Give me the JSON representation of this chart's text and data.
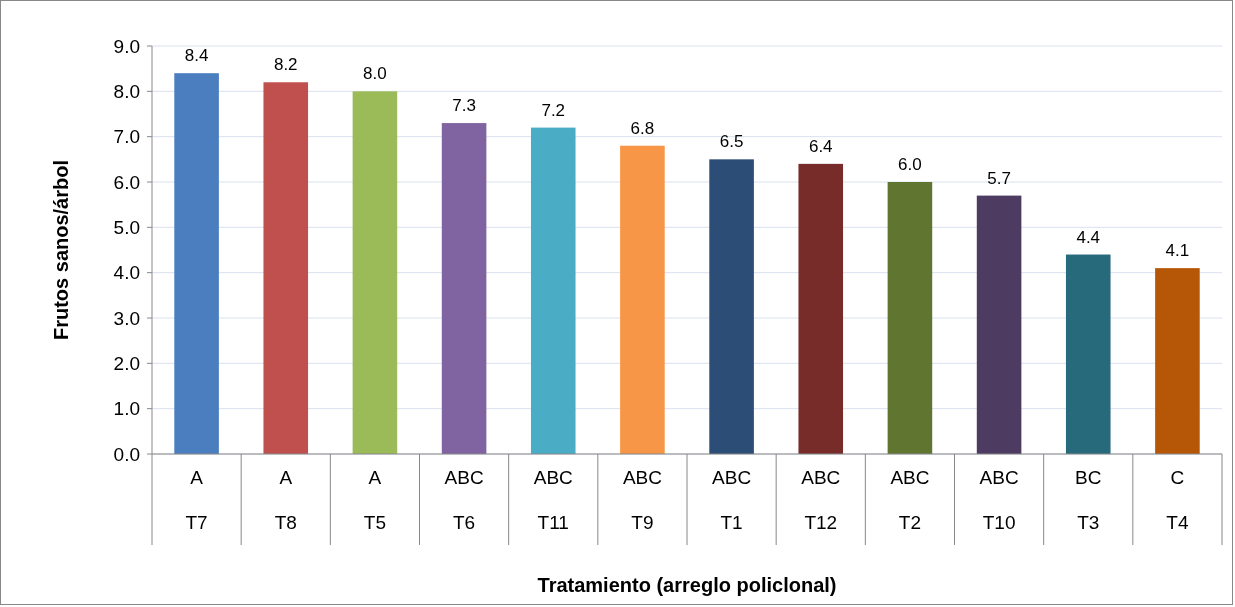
{
  "chart_data": {
    "type": "bar",
    "xlabel": "Tratamiento (arreglo policlonal)",
    "ylabel": "Frutos sanos/árbol",
    "categories": [
      "T7",
      "T8",
      "T5",
      "T6",
      "T11",
      "T9",
      "T1",
      "T12",
      "T2",
      "T10",
      "T3",
      "T4"
    ],
    "values": [
      8.4,
      8.2,
      8.0,
      7.3,
      7.2,
      6.8,
      6.5,
      6.4,
      6.0,
      5.7,
      4.4,
      4.1
    ],
    "colors": [
      "#4a7ebf",
      "#c0504d",
      "#9bbb59",
      "#8064a2",
      "#4bacc6",
      "#f79646",
      "#2c4d75",
      "#772c2a",
      "#5f7530",
      "#4d3b62",
      "#276a7c",
      "#b65708"
    ],
    "ylim": [
      0,
      9
    ],
    "yticks": [
      {
        "value": 0,
        "label": "0.0"
      },
      {
        "value": 1,
        "label": "1.0"
      },
      {
        "value": 2,
        "label": "2.0"
      },
      {
        "value": 3,
        "label": "3.0"
      },
      {
        "value": 4,
        "label": "4.0"
      },
      {
        "value": 5,
        "label": "5.0"
      },
      {
        "value": 6,
        "label": "6.0"
      },
      {
        "value": 7,
        "label": "7.0"
      },
      {
        "value": 8,
        "label": "8.0"
      },
      {
        "value": 9,
        "label": "9.0"
      }
    ],
    "grid": "y",
    "value_labels": [
      "8.4",
      "8.2",
      "8.0",
      "7.3",
      "7.2",
      "6.8",
      "6.5",
      "6.4",
      "6.0",
      "5.7",
      "4.4",
      "4.1"
    ],
    "annotations": [
      "A",
      "A",
      "A",
      "ABC",
      "ABC",
      "ABC",
      "ABC",
      "ABC",
      "ABC",
      "ABC",
      "BC",
      "C"
    ]
  }
}
